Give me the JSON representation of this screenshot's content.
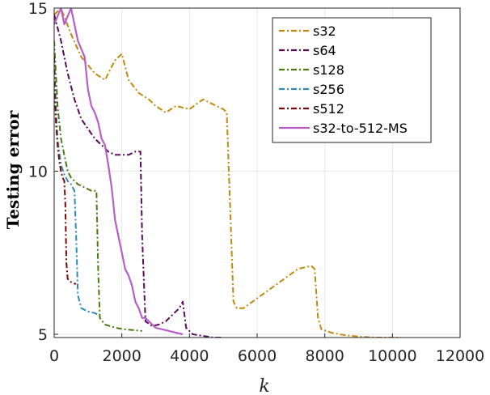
{
  "chart_data": {
    "type": "line",
    "title": "",
    "xlabel": "k",
    "ylabel": "Testing error",
    "xlim": [
      0,
      12000
    ],
    "ylim": [
      4.9,
      15
    ],
    "xticks": [
      0,
      2000,
      4000,
      6000,
      8000,
      10000,
      12000
    ],
    "xtick_labels": [
      "0",
      "2000",
      "4000",
      "6000",
      "8000",
      "10000",
      "12000"
    ],
    "yticks": [
      5,
      10,
      15
    ],
    "ytick_labels": [
      "5",
      "10",
      "15"
    ],
    "grid": true,
    "legend_position": "top-right",
    "series": [
      {
        "name": "s32",
        "color": "#c08a10",
        "dash": "dashdot",
        "points": [
          [
            0,
            14.8
          ],
          [
            200,
            15
          ],
          [
            500,
            14.2
          ],
          [
            800,
            13.5
          ],
          [
            1200,
            13.0
          ],
          [
            1500,
            12.8
          ],
          [
            1800,
            13.4
          ],
          [
            2000,
            13.6
          ],
          [
            2200,
            12.8
          ],
          [
            2500,
            12.4
          ],
          [
            2800,
            12.2
          ],
          [
            3000,
            12.0
          ],
          [
            3300,
            11.8
          ],
          [
            3600,
            12.0
          ],
          [
            4000,
            11.9
          ],
          [
            4400,
            12.2
          ],
          [
            4800,
            12.0
          ],
          [
            5000,
            11.9
          ],
          [
            5100,
            11.8
          ],
          [
            5200,
            9.0
          ],
          [
            5300,
            6.0
          ],
          [
            5400,
            5.8
          ],
          [
            5600,
            5.8
          ],
          [
            6000,
            6.1
          ],
          [
            6400,
            6.4
          ],
          [
            6800,
            6.7
          ],
          [
            7200,
            7.0
          ],
          [
            7600,
            7.1
          ],
          [
            7700,
            7.0
          ],
          [
            7800,
            5.5
          ],
          [
            7900,
            5.15
          ],
          [
            8200,
            5.05
          ],
          [
            8600,
            4.97
          ],
          [
            9000,
            4.93
          ],
          [
            9500,
            4.9
          ],
          [
            10000,
            4.9
          ],
          [
            10250,
            4.9
          ]
        ]
      },
      {
        "name": "s64",
        "color": "#5b0a5b",
        "dash": "dashdot",
        "points": [
          [
            0,
            14.8
          ],
          [
            200,
            14.0
          ],
          [
            400,
            13.0
          ],
          [
            600,
            12.2
          ],
          [
            800,
            11.6
          ],
          [
            1000,
            11.3
          ],
          [
            1200,
            11.0
          ],
          [
            1400,
            10.8
          ],
          [
            1600,
            10.6
          ],
          [
            1800,
            10.5
          ],
          [
            2000,
            10.5
          ],
          [
            2200,
            10.5
          ],
          [
            2400,
            10.6
          ],
          [
            2550,
            10.6
          ],
          [
            2600,
            8.0
          ],
          [
            2700,
            5.4
          ],
          [
            2900,
            5.25
          ],
          [
            3100,
            5.3
          ],
          [
            3300,
            5.4
          ],
          [
            3500,
            5.6
          ],
          [
            3700,
            5.8
          ],
          [
            3800,
            6.0
          ],
          [
            3850,
            5.6
          ],
          [
            3900,
            5.2
          ],
          [
            4100,
            5.0
          ],
          [
            4400,
            4.95
          ],
          [
            4700,
            4.9
          ],
          [
            5000,
            4.9
          ]
        ]
      },
      {
        "name": "s128",
        "color": "#4a7a10",
        "dash": "dashdot",
        "points": [
          [
            0,
            14.0
          ],
          [
            100,
            12.0
          ],
          [
            200,
            11.0
          ],
          [
            300,
            10.5
          ],
          [
            400,
            10.0
          ],
          [
            500,
            9.8
          ],
          [
            700,
            9.6
          ],
          [
            900,
            9.5
          ],
          [
            1100,
            9.4
          ],
          [
            1250,
            9.4
          ],
          [
            1300,
            7.0
          ],
          [
            1350,
            5.5
          ],
          [
            1500,
            5.3
          ],
          [
            1800,
            5.2
          ],
          [
            2100,
            5.15
          ],
          [
            2400,
            5.12
          ],
          [
            2600,
            5.1
          ]
        ]
      },
      {
        "name": "s256",
        "color": "#2a8ab8",
        "dash": "dashdot",
        "points": [
          [
            0,
            13.5
          ],
          [
            50,
            12.0
          ],
          [
            100,
            11.0
          ],
          [
            200,
            10.2
          ],
          [
            300,
            9.9
          ],
          [
            400,
            9.7
          ],
          [
            500,
            9.6
          ],
          [
            600,
            9.4
          ],
          [
            650,
            8.0
          ],
          [
            700,
            6.2
          ],
          [
            800,
            5.8
          ],
          [
            1000,
            5.7
          ],
          [
            1200,
            5.65
          ],
          [
            1300,
            5.6
          ]
        ]
      },
      {
        "name": "s512",
        "color": "#7a0a0a",
        "dash": "dashdot",
        "points": [
          [
            0,
            13.5
          ],
          [
            20,
            12.5
          ],
          [
            50,
            11.5
          ],
          [
            100,
            10.8
          ],
          [
            150,
            10.3
          ],
          [
            200,
            10.0
          ],
          [
            250,
            9.8
          ],
          [
            300,
            9.7
          ],
          [
            330,
            9.0
          ],
          [
            360,
            7.2
          ],
          [
            400,
            6.7
          ],
          [
            500,
            6.6
          ],
          [
            600,
            6.55
          ],
          [
            650,
            6.55
          ]
        ]
      },
      {
        "name": "s32-to-512-MS",
        "color": "#b85ec8",
        "dash": "solid",
        "points": [
          [
            0,
            14.5
          ],
          [
            200,
            15.0
          ],
          [
            300,
            14.5
          ],
          [
            500,
            15.0
          ],
          [
            700,
            14.0
          ],
          [
            900,
            13.5
          ],
          [
            1000,
            12.5
          ],
          [
            1100,
            12.0
          ],
          [
            1200,
            11.8
          ],
          [
            1300,
            11.5
          ],
          [
            1400,
            11.0
          ],
          [
            1500,
            10.8
          ],
          [
            1600,
            10.2
          ],
          [
            1700,
            9.5
          ],
          [
            1800,
            8.5
          ],
          [
            1900,
            8.0
          ],
          [
            2000,
            7.5
          ],
          [
            2100,
            7.0
          ],
          [
            2200,
            6.8
          ],
          [
            2300,
            6.5
          ],
          [
            2400,
            6.0
          ],
          [
            2500,
            5.8
          ],
          [
            2600,
            5.5
          ],
          [
            2700,
            5.5
          ],
          [
            2800,
            5.4
          ],
          [
            2900,
            5.3
          ],
          [
            3000,
            5.2
          ],
          [
            3200,
            5.15
          ],
          [
            3400,
            5.1
          ],
          [
            3600,
            5.05
          ],
          [
            3800,
            5.0
          ]
        ]
      }
    ]
  }
}
